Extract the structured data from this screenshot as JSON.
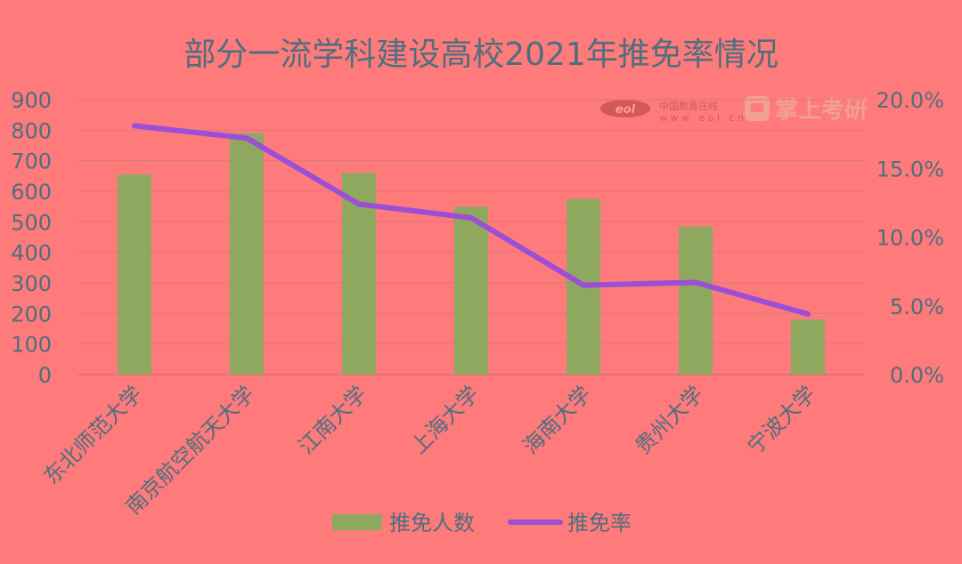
{
  "colors": {
    "background": "#FF7A7A",
    "bar": "#8FA860",
    "line": "#9B4FD6",
    "text": "#4E6F7F",
    "grid": "#D77A7A"
  },
  "watermark": {
    "logo_text": "eol",
    "cn_text": "中国教育在线",
    "url_text": "w w w . e o l . c n",
    "brand_text": "掌上考研",
    "brand_icon": "chat-bubble-icon"
  },
  "chart_data": {
    "type": "bar",
    "title": "部分一流学科建设高校2021年推免率情况",
    "categories": [
      "东北师范大学",
      "南京航空航天大学",
      "江南大学",
      "上海大学",
      "海南大学",
      "贵州大学",
      "宁波大学"
    ],
    "series": [
      {
        "name": "推免人数",
        "type": "bar",
        "axis": "left",
        "values": [
          655,
          790,
          660,
          550,
          575,
          485,
          180
        ]
      },
      {
        "name": "推免率",
        "type": "line",
        "axis": "right",
        "values": [
          18.1,
          17.2,
          12.4,
          11.4,
          6.5,
          6.7,
          4.4
        ]
      }
    ],
    "y_left": {
      "min": 0,
      "max": 900,
      "ticks": [
        "0",
        "100",
        "200",
        "300",
        "400",
        "500",
        "600",
        "700",
        "800",
        "900"
      ]
    },
    "y_right": {
      "min": 0,
      "max": 20,
      "ticks": [
        "0.0%",
        "5.0%",
        "10.0%",
        "15.0%",
        "20.0%"
      ]
    },
    "grid": true,
    "legend_position": "bottom"
  }
}
